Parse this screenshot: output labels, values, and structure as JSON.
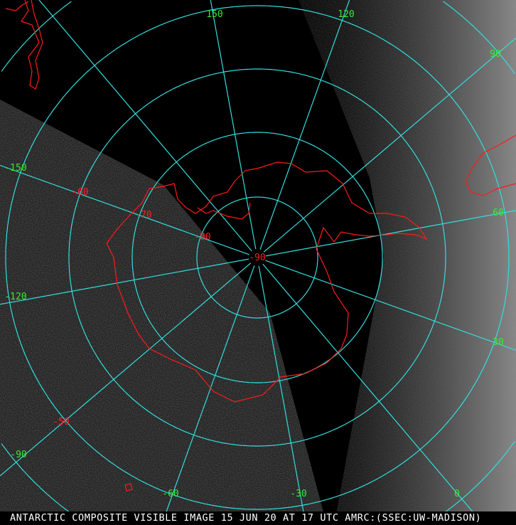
{
  "caption": "ANTARCTIC COMPOSITE VISIBLE IMAGE 15 JUN 20 AT 17 UTC AMRC:(SSEC:UW-MADISON)",
  "colors": {
    "grid": "#33dddd",
    "coastline": "#ff1a1a",
    "longitude_labels": "#33ee33",
    "latitude_labels": "#ff2020",
    "caption": "#ffffff"
  },
  "projection": "south polar stereographic",
  "latitude_labels": [
    "-90",
    "-80",
    "-70",
    "-60",
    "-50"
  ],
  "longitude_labels": [
    "150",
    "120",
    "90",
    "60",
    "30",
    "0",
    "-30",
    "-60",
    "-90",
    "-120",
    "-150"
  ]
}
